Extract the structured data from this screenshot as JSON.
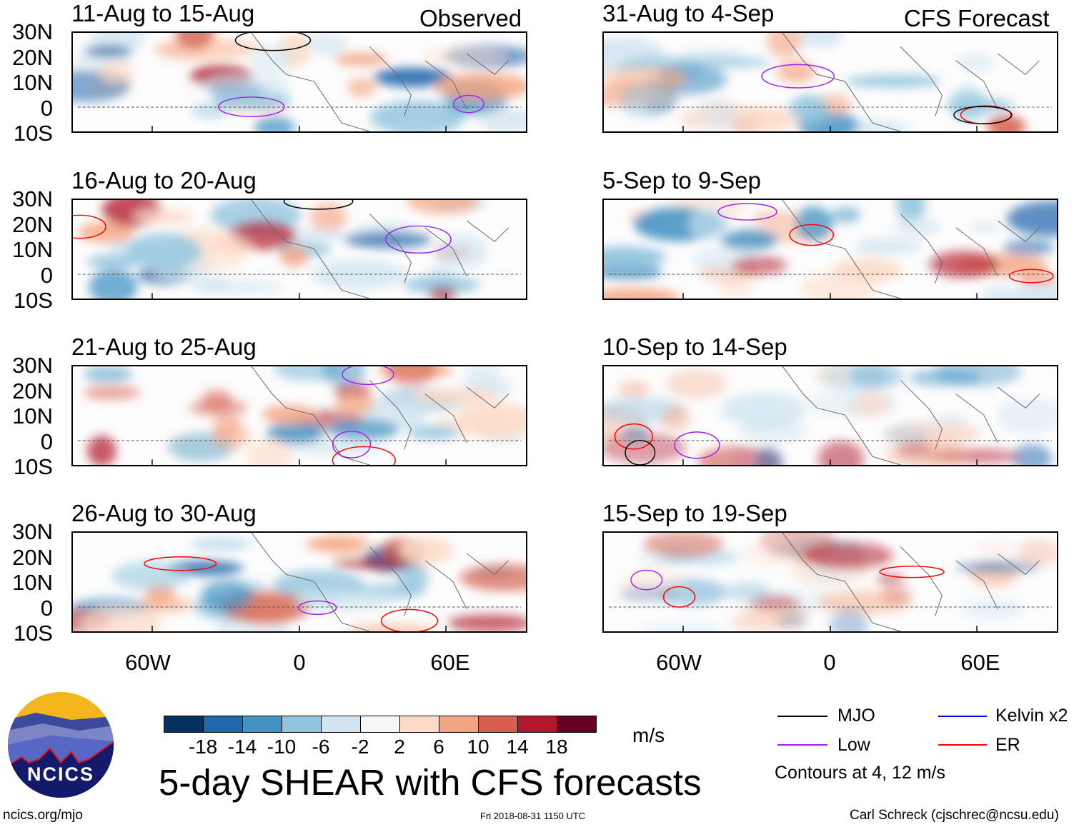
{
  "header": {
    "left_label": "Observed",
    "right_label": "CFS Forecast"
  },
  "panels": [
    {
      "title": "11-Aug to 15-Aug",
      "side": "left"
    },
    {
      "title": "16-Aug to 20-Aug",
      "side": "left"
    },
    {
      "title": "21-Aug to 25-Aug",
      "side": "left"
    },
    {
      "title": "26-Aug to 30-Aug",
      "side": "left"
    },
    {
      "title": "31-Aug to 4-Sep",
      "side": "right"
    },
    {
      "title": "5-Sep to 9-Sep",
      "side": "right"
    },
    {
      "title": "10-Sep to 14-Sep",
      "side": "right"
    },
    {
      "title": "15-Sep to 19-Sep",
      "side": "right"
    }
  ],
  "lat_labels": [
    "30N",
    "20N",
    "10N",
    "0",
    "10S"
  ],
  "lon_labels": [
    "60W",
    "0",
    "60E"
  ],
  "colorbar": {
    "colors": [
      "#053061",
      "#2166ac",
      "#4393c3",
      "#92c5de",
      "#d1e5f0",
      "#f7f7f7",
      "#fddbc7",
      "#f4a582",
      "#d6604d",
      "#b2182b",
      "#67001f"
    ],
    "ticks": [
      "-18",
      "-14",
      "-10",
      "-6",
      "-2",
      "2",
      "6",
      "10",
      "14",
      "18"
    ],
    "units": "m/s"
  },
  "title": "5-day SHEAR with CFS forecasts",
  "legend": [
    {
      "label": "MJO",
      "color": "#000000"
    },
    {
      "label": "Low",
      "color": "#a020f0"
    },
    {
      "label": "Kelvin x2",
      "color": "#0000ff"
    },
    {
      "label": "ER",
      "color": "#ff0000"
    }
  ],
  "contour_note": "Contours at 4, 12 m/s",
  "logo": {
    "text": "NCICS"
  },
  "footer": {
    "url": "ncics.org/mjo",
    "timestamp": "Fri 2018-08-31 1150 UTC",
    "credit": "Carl Schreck (cjschrec@ncsu.edu)"
  }
}
